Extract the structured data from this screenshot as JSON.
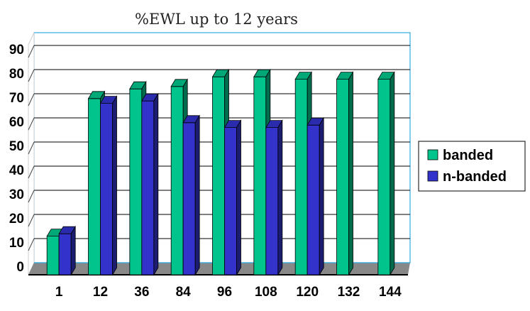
{
  "chart_data": {
    "type": "bar",
    "title": "%EWL up to 12 years",
    "xlabel": "",
    "ylabel": "",
    "categories": [
      "1",
      "12",
      "36",
      "84",
      "96",
      "108",
      "120",
      "132",
      "144"
    ],
    "series": [
      {
        "name": "banded",
        "color": "#00c48c",
        "values": [
          16,
          73,
          77,
          78,
          82,
          82,
          81,
          81,
          81
        ]
      },
      {
        "name": "n-banded",
        "color": "#3333cc",
        "values": [
          17,
          71,
          72,
          63,
          61,
          61,
          62,
          null,
          null
        ]
      }
    ],
    "ylim": [
      0,
      90
    ],
    "yticks": [
      "0",
      "10",
      "20",
      "30",
      "40",
      "50",
      "60",
      "70",
      "80",
      "90"
    ],
    "grid": true,
    "legend_position": "right",
    "colors": {
      "plot_border": "#33aadd",
      "floor": "#888888",
      "gridline": "#000000"
    }
  }
}
